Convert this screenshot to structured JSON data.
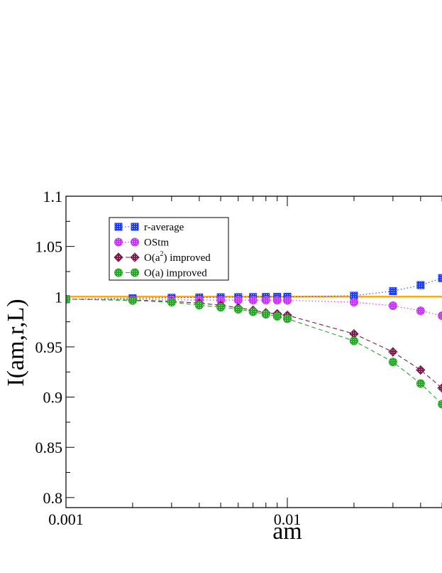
{
  "chart_data": {
    "type": "line",
    "xlabel": "am",
    "ylabel": "I(am,r,L)",
    "xscale": "log",
    "xlim": [
      0.001,
      0.066
    ],
    "ylim": [
      0.79,
      1.1
    ],
    "x_ticks": [
      {
        "value": 0.001,
        "label": "0.001"
      },
      {
        "value": 0.01,
        "label": "0.01"
      }
    ],
    "y_ticks": [
      {
        "value": 0.8,
        "label": "0.8"
      },
      {
        "value": 0.85,
        "label": "0.85"
      },
      {
        "value": 0.9,
        "label": "0.9"
      },
      {
        "value": 0.95,
        "label": "0.95"
      },
      {
        "value": 1.0,
        "label": "1"
      },
      {
        "value": 1.05,
        "label": "1.05"
      },
      {
        "value": 1.1,
        "label": "1.1"
      }
    ],
    "reference_line": {
      "y": 1.0,
      "color": "#FFA500"
    },
    "legend_position": "top-left",
    "series": [
      {
        "name": "r-average",
        "marker": "square",
        "color": "#1a3cff",
        "line": "dotted",
        "x": [
          0.001,
          0.002,
          0.003,
          0.004,
          0.005,
          0.006,
          0.007,
          0.008,
          0.009,
          0.01,
          0.02,
          0.03,
          0.04,
          0.05
        ],
        "y": [
          0.9975,
          0.9984,
          0.9989,
          0.9992,
          0.9994,
          0.9995,
          0.9996,
          0.9997,
          0.9998,
          0.9999,
          1.001,
          1.0055,
          1.0115,
          1.0185
        ]
      },
      {
        "name": "OStm",
        "marker": "circle",
        "color": "#cc33ff",
        "line": "dotted",
        "x": [
          0.001,
          0.002,
          0.003,
          0.004,
          0.005,
          0.006,
          0.007,
          0.008,
          0.009,
          0.01,
          0.02,
          0.03,
          0.04,
          0.05
        ],
        "y": [
          0.9975,
          0.9971,
          0.9968,
          0.9967,
          0.9966,
          0.9966,
          0.9965,
          0.9965,
          0.9964,
          0.9963,
          0.9945,
          0.991,
          0.986,
          0.981
        ]
      },
      {
        "name": "O(a<sup>2</sup>) improved",
        "marker": "diamond",
        "color": "#7a1a4a",
        "line": "dashed",
        "x": [
          0.001,
          0.002,
          0.003,
          0.004,
          0.005,
          0.006,
          0.007,
          0.008,
          0.009,
          0.01,
          0.02,
          0.03,
          0.04,
          0.05
        ],
        "y": [
          0.9975,
          0.9965,
          0.9953,
          0.9935,
          0.9915,
          0.989,
          0.9865,
          0.984,
          0.983,
          0.9815,
          0.963,
          0.945,
          0.927,
          0.909
        ]
      },
      {
        "name": "O(a) improved",
        "marker": "circle",
        "color": "#22aa22",
        "line": "dashed",
        "x": [
          0.001,
          0.002,
          0.003,
          0.004,
          0.005,
          0.006,
          0.007,
          0.008,
          0.009,
          0.01,
          0.02,
          0.03,
          0.04,
          0.05
        ],
        "y": [
          0.9975,
          0.9962,
          0.9945,
          0.9915,
          0.9895,
          0.9875,
          0.985,
          0.9825,
          0.9805,
          0.978,
          0.956,
          0.935,
          0.9135,
          0.893
        ]
      }
    ]
  }
}
